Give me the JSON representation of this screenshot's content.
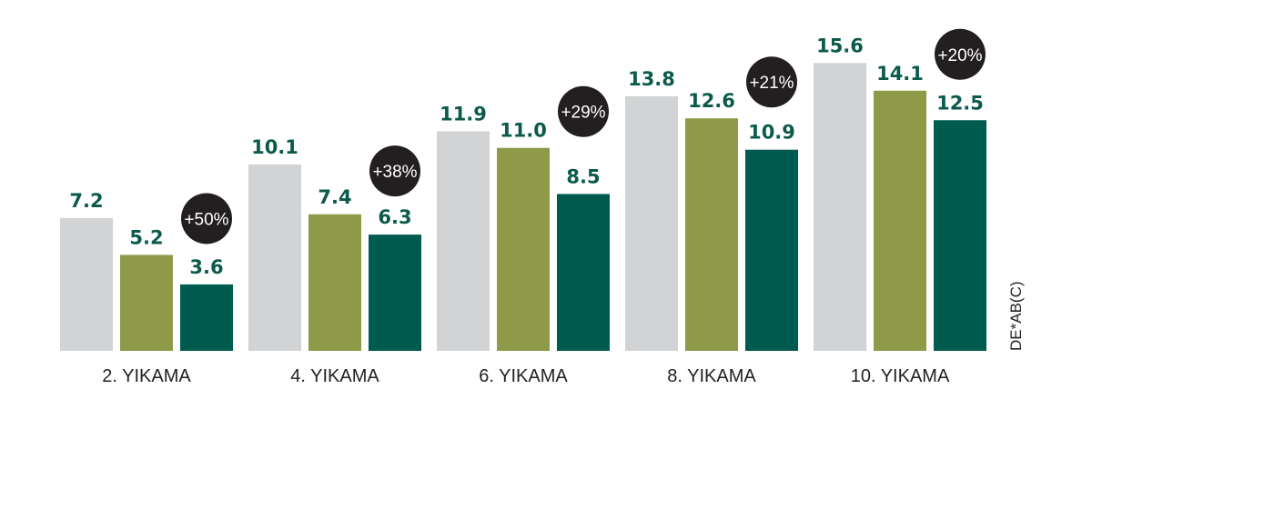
{
  "chart_data": {
    "type": "bar",
    "categories": [
      "2. YIKAMA",
      "4. YIKAMA",
      "6. YIKAMA",
      "8. YIKAMA",
      "10. YIKAMA"
    ],
    "series": [
      {
        "values": [
          7.2,
          10.1,
          11.9,
          13.8,
          15.6
        ],
        "color": "#d1d3d4",
        "label_color": "#0b5a4b"
      },
      {
        "values": [
          5.2,
          7.4,
          11.0,
          12.6,
          14.1
        ],
        "color": "#8e9a47",
        "label_color": "#0b5a4b"
      },
      {
        "values": [
          3.6,
          6.3,
          8.5,
          10.9,
          12.5
        ],
        "color": "#005b4f",
        "label_color": "#0b5a4b"
      }
    ],
    "value_labels": [
      [
        "7.2",
        "10.1",
        "11.9",
        "13.8",
        "15.6"
      ],
      [
        "5.2",
        "7.4",
        "11.0",
        "12.6",
        "14.1"
      ],
      [
        "3.6",
        "6.3",
        "8.5",
        "10.9",
        "12.5"
      ]
    ],
    "annotations": [
      "+50%",
      "+38%",
      "+29%",
      "+21%",
      "+20%"
    ],
    "annotation_color": "#231f20",
    "ylabel": "DE*AB(C)",
    "ylim": [
      0,
      16.5
    ],
    "grid": false,
    "legend": "none"
  }
}
